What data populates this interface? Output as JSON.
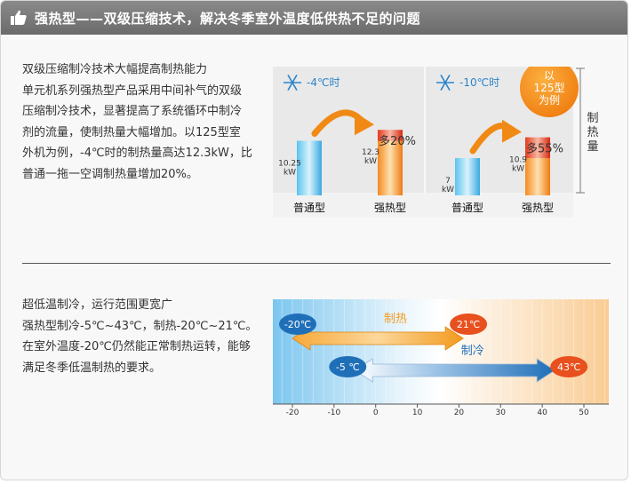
{
  "header": {
    "title": "强热型——双级压缩技术，解决冬季室外温度低供热不足的问题",
    "icon": "thumbs-up-icon"
  },
  "section1": {
    "lines": [
      "双级压缩制冷技术大幅提高制热能力",
      "单元机系列强热型产品采用中间补气的双级",
      "压缩制冷技术，显著提高了系统循环中制冷",
      "剂的流量，使制热量大幅增加。以125型室",
      "外机为例，-4℃时的制热量高达12.3kW，比",
      "普通一拖一空调制热量增加20%。"
    ]
  },
  "section2": {
    "lines": [
      "超低温制冷，运行范围更宽广",
      "强热型制冷-5℃~43℃，制热-20℃~21℃。",
      "在室外温度-20℃仍然能正常制热运转，能够",
      "满足冬季低温制热的要求。"
    ]
  },
  "chart_data": [
    {
      "type": "bar",
      "ylabel": "制热量",
      "badge": [
        "以",
        "125型",
        "为例"
      ],
      "panels": [
        {
          "condition": "-4℃时",
          "categories": [
            "普通型",
            "强热型"
          ],
          "values": [
            10.25,
            12.3
          ],
          "value_labels": [
            "10.25",
            "12.3"
          ],
          "unit": "kW",
          "increase_label": "多20%"
        },
        {
          "condition": "-10℃时",
          "categories": [
            "普通型",
            "强热型"
          ],
          "values": [
            7,
            10.9
          ],
          "value_labels": [
            "7",
            "10.9"
          ],
          "unit": "kW",
          "increase_label": "多55%"
        }
      ]
    },
    {
      "type": "range",
      "x_ticks": [
        -20,
        -10,
        0,
        10,
        20,
        30,
        40,
        50
      ],
      "xlim": [
        -26,
        57
      ],
      "ranges": [
        {
          "name": "制热",
          "min": -20,
          "max": 21,
          "min_label": "-20℃",
          "max_label": "21℃",
          "color": "#f39a1e"
        },
        {
          "name": "制冷",
          "min": -5,
          "max": 43,
          "min_label": "-5 ℃",
          "max_label": "43℃",
          "color": "#1f6fb8"
        }
      ]
    }
  ]
}
